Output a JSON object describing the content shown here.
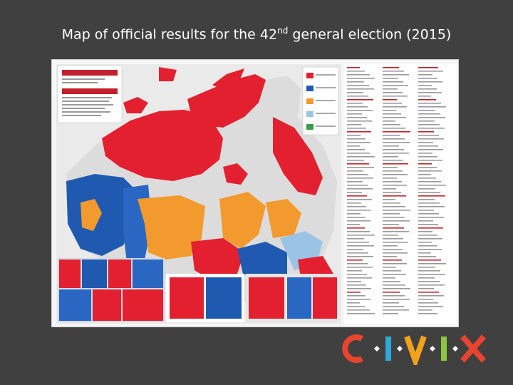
{
  "slide": {
    "title_main": "Map of official results for the 42",
    "title_sup": "nd",
    "title_rest": " general election (2015)"
  },
  "map": {
    "inset_title_en": "42nd GENERAL ELECTION",
    "inset_title_fr": "42e ÉLECTION GÉNÉRALE",
    "legend_header": "POLITICAL PARTIES",
    "results_header": "CANDIDATES ELECTED",
    "colors": {
      "liberal": "#e3202f",
      "conservative": "#1f5ab0",
      "ndp": "#f39a2e",
      "bloc": "#9ac3e6",
      "green": "#3d9a46",
      "land": "#dcdcdc",
      "water": "#ffffff"
    },
    "legend_icons": [
      "liberal-swatch",
      "conservative-swatch",
      "ndp-swatch",
      "bloc-swatch",
      "green-swatch"
    ]
  },
  "logo": {
    "letters": [
      "C",
      "I",
      "V",
      "I",
      "X"
    ],
    "colors": [
      "#e8442f",
      "#2fa9d6",
      "#f4a21c",
      "#8cc63f",
      "#e8442f"
    ]
  }
}
